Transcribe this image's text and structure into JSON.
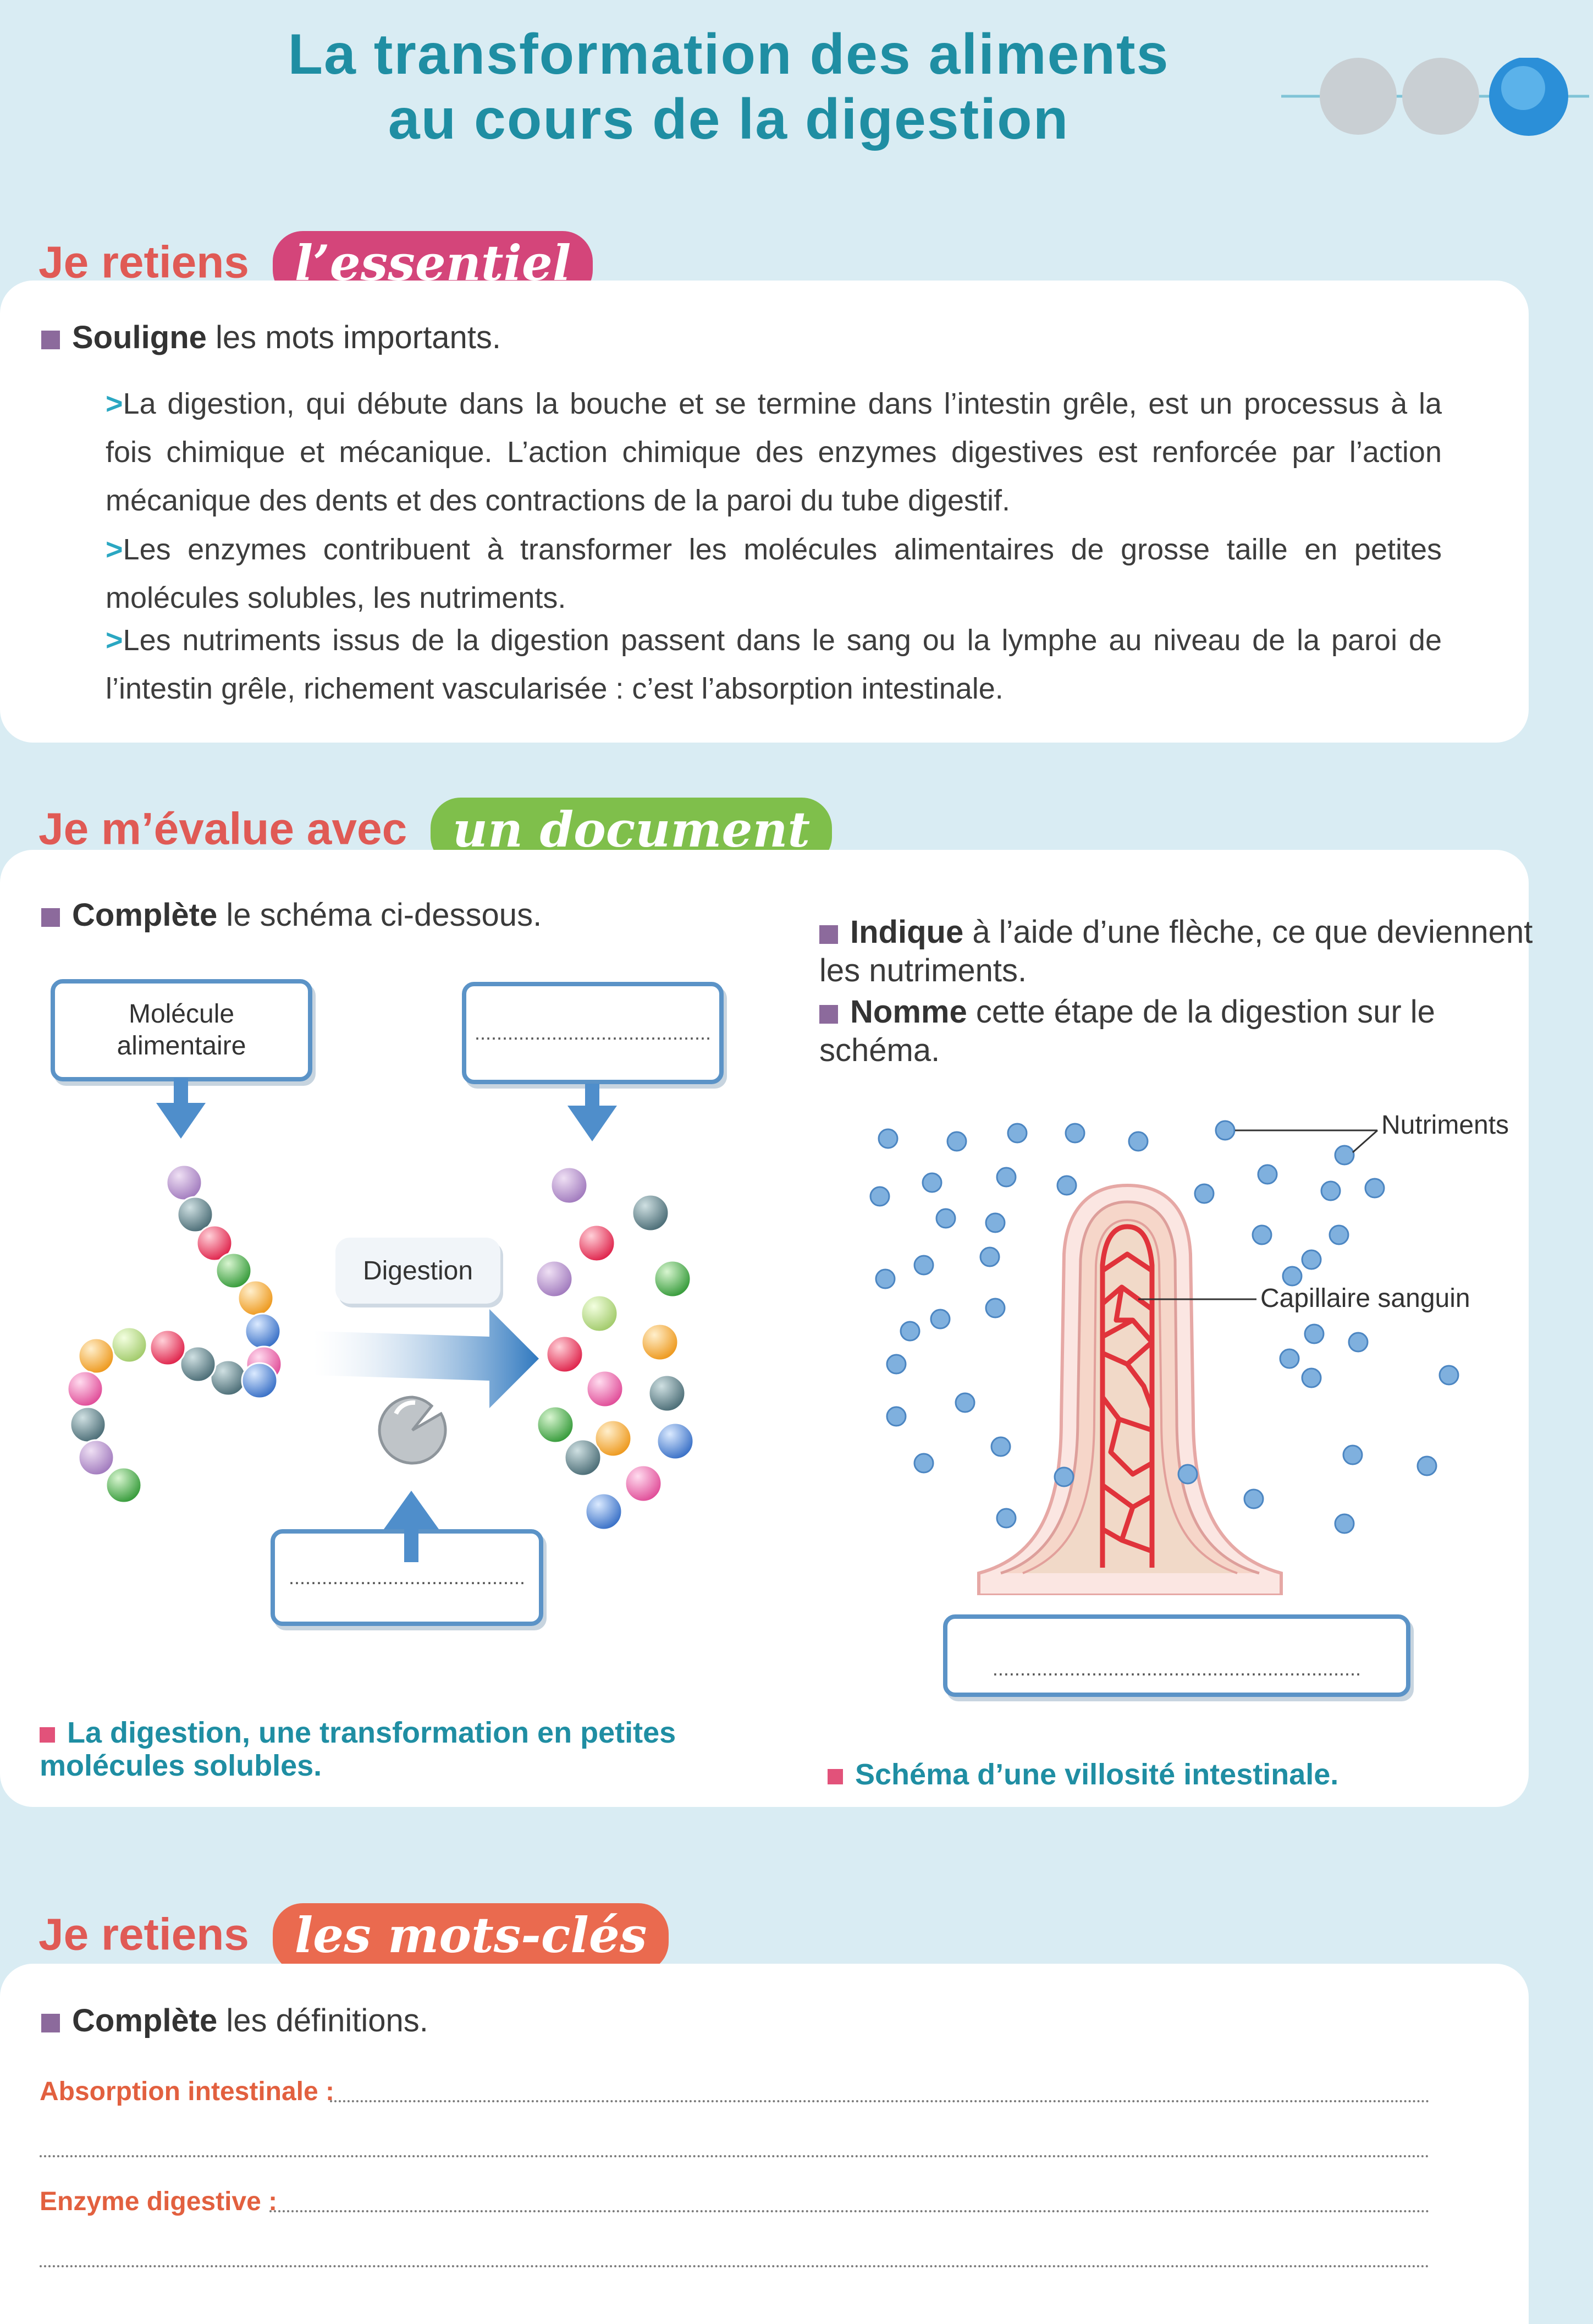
{
  "title": {
    "line1": "La transformation des aliments",
    "line2": "au cours de la digestion"
  },
  "section1": {
    "head": "Je retiens",
    "pill": "l’essentiel",
    "instruction_bold": "Souligne",
    "instruction_rest": " les mots importants.",
    "paragraphs": [
      "La digestion, qui débute dans la bouche et se termine dans l’intestin grêle, est un processus à la fois chimique et mécanique. L’action chimique des enzymes digestives est renforcée par l’action mécanique des dents et des contractions de la paroi du tube digestif.",
      "Les enzymes contribuent à transformer les molécules alimentaires de grosse taille en petites molécules solubles, les nutriments.",
      "Les nutriments issus de la digestion passent dans le sang ou la lymphe au niveau de la paroi de l’intestin grêle, richement vascularisée : c’est l’absorption intestinale."
    ],
    "marker": ">"
  },
  "section2": {
    "head": "Je m’évalue avec",
    "pill": "un document",
    "left": {
      "instruction_bold": "Complète",
      "instruction_rest": " le schéma ci-dessous.",
      "box_molecule": "Molécule alimentaire",
      "box_blank_top": "...........................................",
      "box_blank_bottom": "...........................................",
      "digestion_label": "Digestion",
      "caption": "La digestion, une transformation en petites molécules solubles."
    },
    "right": {
      "instr1_bold": "Indique",
      "instr1_rest": " à l’aide d’une flèche, ce que deviennent les nutriments.",
      "instr2_bold": "Nomme",
      "instr2_rest": " cette étape de la digestion sur le schéma.",
      "label_nutriments": "Nutriments",
      "label_capillaire": "Capillaire sanguin",
      "box_blank": "...................................................................",
      "caption": "Schéma d’une villosité intestinale."
    }
  },
  "section3": {
    "head": "Je retiens",
    "pill": "les mots-clés",
    "instruction_bold": "Complète",
    "instruction_rest": " les définitions.",
    "kw1": "Absorption intestinale :",
    "kw2": "Enzyme digestive :"
  },
  "colors": {
    "title": "#1f8ea3",
    "section_head": "#e05a55",
    "pill_essentiel": "#d4457a",
    "pill_document": "#7fbf4b",
    "pill_motscles": "#ea6a4f",
    "box_border": "#5b93c7",
    "nutrient": "#6fa3d9"
  }
}
